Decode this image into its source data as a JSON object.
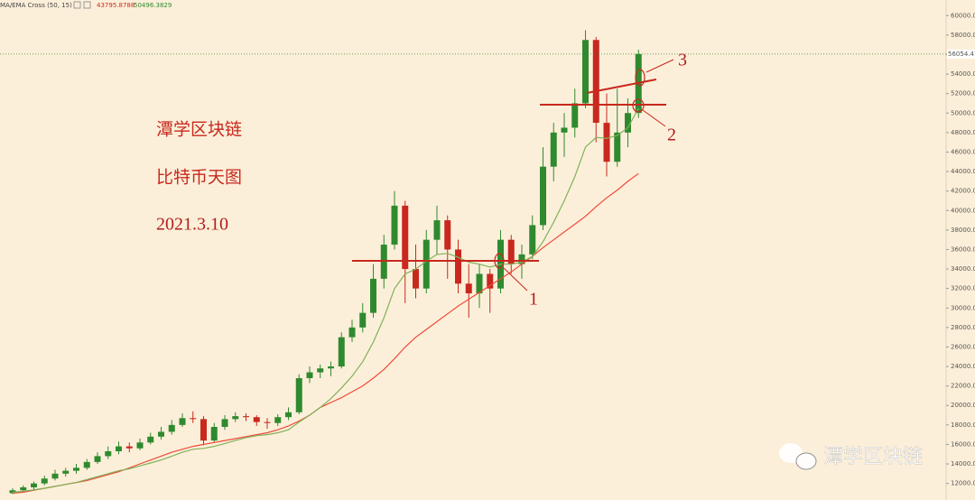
{
  "chart_data": {
    "type": "candlestick",
    "indicator": "MA/EMA Cross (50, 15)",
    "annotations": {
      "title": "潭学区块链",
      "subtitle": "比特币天图",
      "date": "2021.3.10",
      "mark1": "1",
      "mark2": "2",
      "mark3": "3",
      "watermark": "潭学区块链"
    },
    "candles": {
      "open": [
        11000,
        11300,
        11600,
        12000,
        12500,
        13000,
        13300,
        13600,
        14200,
        14800,
        15300,
        15800,
        15600,
        16200,
        16800,
        17300,
        18000,
        18700,
        18600,
        16400,
        17800,
        18600,
        18900,
        18800,
        18300,
        18200,
        18800,
        19300,
        22800,
        23400,
        23800,
        24000,
        27000,
        28000,
        29500,
        33000,
        36500,
        40500,
        34000,
        32000,
        37000,
        39000,
        36000,
        32500,
        31500,
        33500,
        32000,
        37000,
        34500,
        35500,
        38500,
        44500,
        48000,
        48500,
        51000,
        57500,
        49000,
        45000,
        48000,
        50000
      ],
      "high": [
        11500,
        11800,
        12200,
        12800,
        13400,
        13600,
        14000,
        14500,
        15200,
        15800,
        16300,
        16200,
        16600,
        17200,
        17800,
        18500,
        19200,
        19400,
        18900,
        18200,
        19000,
        19300,
        19200,
        19000,
        18700,
        19100,
        19800,
        23200,
        24000,
        24200,
        24500,
        27500,
        28800,
        30500,
        34500,
        37500,
        42000,
        41000,
        36500,
        38000,
        40500,
        39500,
        37000,
        34500,
        34500,
        34000,
        38000,
        37500,
        36500,
        39500,
        46500,
        49000,
        50000,
        52500,
        58500,
        57800,
        52000,
        52500,
        51500,
        56500
      ],
      "low": [
        10900,
        11100,
        11400,
        11800,
        12300,
        12700,
        13000,
        13400,
        14000,
        14500,
        15000,
        15200,
        15400,
        16000,
        16500,
        17000,
        17800,
        18200,
        15900,
        16200,
        17500,
        18300,
        18400,
        17900,
        17600,
        17900,
        18500,
        19100,
        22300,
        22800,
        23000,
        23800,
        26500,
        27500,
        29000,
        32000,
        36000,
        30500,
        31000,
        31500,
        35500,
        33000,
        31500,
        29000,
        30000,
        29500,
        31500,
        33500,
        33000,
        35000,
        38000,
        43000,
        45500,
        47500,
        50500,
        47000,
        43500,
        44500,
        46500,
        49500
      ],
      "close": [
        11300,
        11600,
        12000,
        12500,
        13000,
        13300,
        13600,
        14200,
        14800,
        15300,
        15800,
        15600,
        16200,
        16800,
        17300,
        18000,
        18700,
        18600,
        16400,
        17800,
        18600,
        18900,
        18800,
        18300,
        18200,
        18800,
        19300,
        22800,
        23400,
        23800,
        24000,
        27000,
        28000,
        29500,
        33000,
        36500,
        40500,
        34000,
        32000,
        37000,
        39000,
        36000,
        32500,
        31500,
        33500,
        32000,
        37000,
        34500,
        35500,
        38500,
        44500,
        48000,
        48500,
        51000,
        57500,
        49000,
        45000,
        48000,
        50000,
        56054.41
      ],
      "up_color": "#2f8a2f",
      "down_color": "#c8281e"
    },
    "lines": [
      {
        "name": "MA 50",
        "color": "#f0493a",
        "values": [
          11000,
          11100,
          11300,
          11500,
          11700,
          11900,
          12100,
          12300,
          12600,
          12900,
          13200,
          13600,
          14000,
          14400,
          14800,
          15200,
          15500,
          15800,
          16000,
          16200,
          16400,
          16600,
          16800,
          17000,
          17200,
          17500,
          17900,
          18400,
          19000,
          19800,
          20300,
          20800,
          21400,
          22000,
          22800,
          23700,
          24800,
          26000,
          27000,
          27800,
          28600,
          29400,
          30200,
          30900,
          31600,
          32300,
          33000,
          33700,
          34500,
          35300,
          36200,
          37000,
          37800,
          38600,
          39400,
          40400,
          41300,
          42100,
          43000,
          43795.8788
        ]
      },
      {
        "name": "EMA 15",
        "color": "#7fb25a",
        "values": [
          11100,
          11200,
          11350,
          11500,
          11700,
          11900,
          12100,
          12400,
          12700,
          13000,
          13300,
          13500,
          13800,
          14100,
          14400,
          14800,
          15200,
          15500,
          15600,
          15800,
          16100,
          16400,
          16700,
          16900,
          17000,
          17200,
          17500,
          18300,
          19000,
          19800,
          20700,
          21800,
          23000,
          24500,
          26500,
          29000,
          32000,
          33500,
          34000,
          34800,
          35500,
          35600,
          35200,
          34700,
          34500,
          34200,
          34500,
          34500,
          34700,
          35300,
          36800,
          38800,
          41000,
          43500,
          46500,
          47500,
          47400,
          47700,
          48500,
          50496.3829
        ]
      }
    ],
    "ylim": [
      10300,
      61600
    ],
    "yticks": [
      {
        "value": 12000,
        "label": "12000.00"
      },
      {
        "value": 14000,
        "label": "14000.00"
      },
      {
        "value": 16000,
        "label": "16000.00"
      },
      {
        "value": 18000,
        "label": "18000.00"
      },
      {
        "value": 20000,
        "label": "20000.00"
      },
      {
        "value": 22000,
        "label": "22000.00"
      },
      {
        "value": 24000,
        "label": "24000.00"
      },
      {
        "value": 26000,
        "label": "26000.00"
      },
      {
        "value": 28000,
        "label": "28000.00"
      },
      {
        "value": 30000,
        "label": "30000.00"
      },
      {
        "value": 32000,
        "label": "32000.00"
      },
      {
        "value": 34000,
        "label": "34000.00"
      },
      {
        "value": 36000,
        "label": "36000.00"
      },
      {
        "value": 38000,
        "label": "38000.00"
      },
      {
        "value": 40000,
        "label": "40000.00"
      },
      {
        "value": 42000,
        "label": "42000.00"
      },
      {
        "value": 44000,
        "label": "44000.00"
      },
      {
        "value": 46000,
        "label": "46000.00"
      },
      {
        "value": 48000,
        "label": "48000.00"
      },
      {
        "value": 50000,
        "label": "50000.00"
      },
      {
        "value": 52000,
        "label": "52000.00"
      },
      {
        "value": 54000,
        "label": "54000.00"
      },
      {
        "value": 56000,
        "label": "56000.00"
      },
      {
        "value": 58000,
        "label": "58000.00"
      },
      {
        "value": 60000,
        "label": "60000.00"
      }
    ]
  }
}
